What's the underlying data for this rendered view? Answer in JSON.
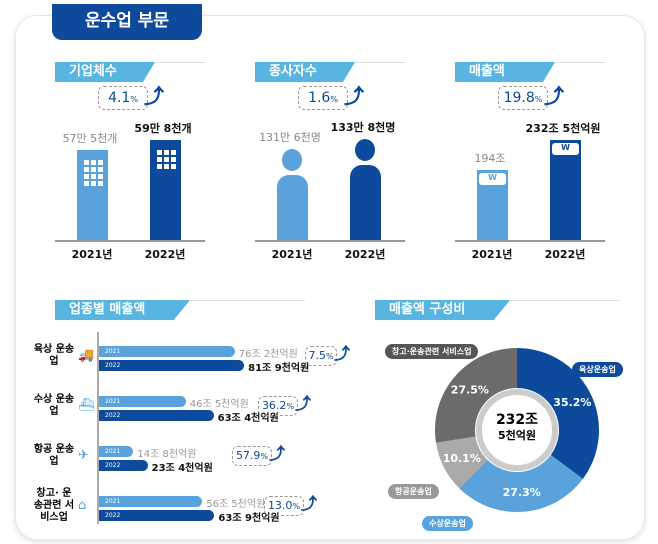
{
  "title": "운수업 부문",
  "colors": {
    "y2021": "#5aa2dc",
    "y2022": "#0d4a9b",
    "header": "#58b4e0",
    "land": "#0d4a9b",
    "water": "#5aa2dc",
    "air": "#aaaaaa",
    "warehouse": "#6b6b6b"
  },
  "chart_data": [
    {
      "type": "bar",
      "title": "기업체수",
      "categories": [
        "2021년",
        "2022년"
      ],
      "values": [
        575000,
        598000
      ],
      "labels": [
        "57만 5천개",
        "59만 8천개"
      ],
      "change": "4.1",
      "change_unit": "%",
      "icon": "building-icon"
    },
    {
      "type": "bar",
      "title": "종사자수",
      "categories": [
        "2021년",
        "2022년"
      ],
      "values": [
        1316000,
        1338000
      ],
      "labels": [
        "131만 6천명",
        "133만 8천명"
      ],
      "change": "1.6",
      "change_unit": "%",
      "icon": "person-icon"
    },
    {
      "type": "bar",
      "title": "매출액",
      "categories": [
        "2021년",
        "2022년"
      ],
      "values": [
        194,
        232.5
      ],
      "labels": [
        "194조",
        "232조 5천억원"
      ],
      "change": "19.8",
      "change_unit": "%",
      "icon": "won-icon",
      "won": "W"
    },
    {
      "type": "bar",
      "orientation": "horizontal",
      "title": "업종별 매출액",
      "unit": "조원",
      "rows": [
        {
          "category": "육상 운송업",
          "icon": "truck-icon",
          "v2021": 76.2,
          "v2022": 81.9,
          "l2021": "76조 2천억원",
          "l2022": "81조 9천억원",
          "change": "7.5"
        },
        {
          "category": "수상 운송업",
          "icon": "ship-icon",
          "v2021": 46.5,
          "v2022": 63.4,
          "l2021": "46조 5천억원",
          "l2022": "63조 4천억원",
          "change": "36.2"
        },
        {
          "category": "항공 운송업",
          "icon": "airplane-icon",
          "v2021": 14.8,
          "v2022": 23.4,
          "l2021": "14조 8천억원",
          "l2022": "23조 4천억원",
          "change": "57.9"
        },
        {
          "category": "창고· 운송관련 서비스업",
          "icon": "warehouse-icon",
          "v2021": 56.5,
          "v2022": 63.9,
          "l2021": "56조 5천억원",
          "l2022": "63조 9천억원",
          "change": "13.0"
        }
      ],
      "series": [
        "2021",
        "2022"
      ],
      "change_unit": "%"
    },
    {
      "type": "pie",
      "title": "매출액 구성비",
      "center_value": "232조",
      "center_sub": "5천억원",
      "slices": [
        {
          "name": "육상운송업",
          "value": 35.2,
          "color": "#0d4a9b"
        },
        {
          "name": "수상운송업",
          "value": 27.3,
          "color": "#5aa2dc"
        },
        {
          "name": "항공운송업",
          "value": 10.1,
          "color": "#aaaaaa"
        },
        {
          "name": "창고·운송관련 서비스업",
          "value": 27.5,
          "color": "#6b6b6b"
        }
      ],
      "unit": "%"
    }
  ]
}
